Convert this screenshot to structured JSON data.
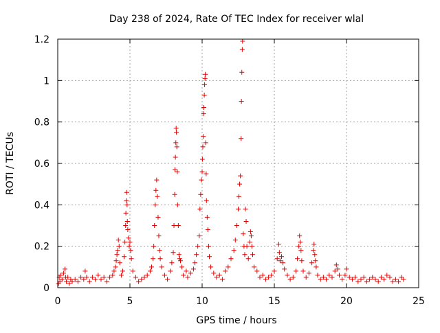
{
  "chart_data": {
    "type": "scatter",
    "title": "Day 238 of 2024, Rate Of TEC Index for receiver wlal",
    "xlabel": "GPS time / hours",
    "ylabel": "ROTI / TECUs",
    "xlim": [
      0,
      25
    ],
    "ylim": [
      0,
      1.2
    ],
    "xticks": [
      0,
      5,
      10,
      15,
      20,
      25
    ],
    "xtick_labels": [
      "0",
      "5",
      "10",
      "15",
      "20",
      "25"
    ],
    "yticks": [
      0,
      0.2,
      0.4,
      0.6,
      0.8,
      1.0,
      1.2
    ],
    "ytick_labels": [
      "0",
      "0.2",
      "0.4",
      "0.6",
      "0.8",
      "1",
      "1.2"
    ],
    "grid": true,
    "marker": "+",
    "series": [
      {
        "color": "#e00000",
        "points": [
          [
            0.05,
            0.02
          ],
          [
            0.1,
            0.05
          ],
          [
            0.15,
            0.03
          ],
          [
            0.2,
            0.06
          ],
          [
            0.3,
            0.04
          ],
          [
            0.4,
            0.07
          ],
          [
            0.5,
            0.09
          ],
          [
            0.55,
            0.05
          ],
          [
            0.6,
            0.03
          ],
          [
            0.7,
            0.05
          ],
          [
            0.8,
            0.02
          ],
          [
            0.9,
            0.04
          ],
          [
            1.0,
            0.03
          ],
          [
            1.2,
            0.04
          ],
          [
            1.4,
            0.03
          ],
          [
            1.6,
            0.05
          ],
          [
            1.8,
            0.04
          ],
          [
            1.9,
            0.08
          ],
          [
            2.0,
            0.05
          ],
          [
            2.2,
            0.03
          ],
          [
            2.4,
            0.05
          ],
          [
            2.6,
            0.04
          ],
          [
            2.8,
            0.06
          ],
          [
            3.0,
            0.04
          ],
          [
            3.2,
            0.05
          ],
          [
            3.4,
            0.03
          ],
          [
            3.6,
            0.05
          ],
          [
            3.8,
            0.06
          ],
          [
            3.9,
            0.08
          ],
          [
            4.0,
            0.1
          ],
          [
            4.05,
            0.13
          ],
          [
            4.1,
            0.16
          ],
          [
            4.15,
            0.18
          ],
          [
            4.2,
            0.23
          ],
          [
            4.25,
            0.2
          ],
          [
            4.3,
            0.12
          ],
          [
            4.4,
            0.06
          ],
          [
            4.5,
            0.08
          ],
          [
            4.6,
            0.15
          ],
          [
            4.65,
            0.22
          ],
          [
            4.7,
            0.3
          ],
          [
            4.72,
            0.36
          ],
          [
            4.75,
            0.42
          ],
          [
            4.78,
            0.46
          ],
          [
            4.8,
            0.4
          ],
          [
            4.82,
            0.32
          ],
          [
            4.85,
            0.28
          ],
          [
            4.9,
            0.24
          ],
          [
            4.95,
            0.2
          ],
          [
            5.0,
            0.22
          ],
          [
            5.05,
            0.18
          ],
          [
            5.1,
            0.14
          ],
          [
            5.2,
            0.08
          ],
          [
            5.4,
            0.05
          ],
          [
            5.6,
            0.03
          ],
          [
            5.8,
            0.04
          ],
          [
            6.0,
            0.05
          ],
          [
            6.2,
            0.06
          ],
          [
            6.4,
            0.08
          ],
          [
            6.5,
            0.1
          ],
          [
            6.6,
            0.14
          ],
          [
            6.65,
            0.2
          ],
          [
            6.7,
            0.3
          ],
          [
            6.75,
            0.4
          ],
          [
            6.8,
            0.47
          ],
          [
            6.85,
            0.52
          ],
          [
            6.9,
            0.44
          ],
          [
            6.95,
            0.34
          ],
          [
            7.0,
            0.25
          ],
          [
            7.05,
            0.18
          ],
          [
            7.1,
            0.14
          ],
          [
            7.2,
            0.1
          ],
          [
            7.4,
            0.06
          ],
          [
            7.6,
            0.04
          ],
          [
            7.8,
            0.08
          ],
          [
            7.9,
            0.12
          ],
          [
            8.0,
            0.17
          ],
          [
            8.05,
            0.3
          ],
          [
            8.1,
            0.45
          ],
          [
            8.12,
            0.57
          ],
          [
            8.15,
            0.63
          ],
          [
            8.18,
            0.7
          ],
          [
            8.2,
            0.77
          ],
          [
            8.22,
            0.75
          ],
          [
            8.25,
            0.68
          ],
          [
            8.28,
            0.56
          ],
          [
            8.3,
            0.4
          ],
          [
            8.35,
            0.3
          ],
          [
            8.4,
            0.16
          ],
          [
            8.45,
            0.14
          ],
          [
            8.5,
            0.13
          ],
          [
            8.6,
            0.1
          ],
          [
            8.7,
            0.06
          ],
          [
            8.9,
            0.08
          ],
          [
            9.0,
            0.05
          ],
          [
            9.2,
            0.07
          ],
          [
            9.4,
            0.09
          ],
          [
            9.5,
            0.12
          ],
          [
            9.6,
            0.16
          ],
          [
            9.7,
            0.2
          ],
          [
            9.8,
            0.25
          ],
          [
            9.85,
            0.38
          ],
          [
            9.9,
            0.45
          ],
          [
            9.95,
            0.52
          ],
          [
            10.0,
            0.56
          ],
          [
            10.02,
            0.62
          ],
          [
            10.05,
            0.68
          ],
          [
            10.08,
            0.73
          ],
          [
            10.1,
            0.84
          ],
          [
            10.12,
            0.87
          ],
          [
            10.15,
            0.93
          ],
          [
            10.17,
            0.98
          ],
          [
            10.2,
            1.01
          ],
          [
            10.22,
            1.03
          ],
          [
            10.25,
            0.7
          ],
          [
            10.28,
            0.55
          ],
          [
            10.3,
            0.42
          ],
          [
            10.35,
            0.34
          ],
          [
            10.4,
            0.28
          ],
          [
            10.45,
            0.2
          ],
          [
            10.5,
            0.15
          ],
          [
            10.6,
            0.1
          ],
          [
            10.8,
            0.07
          ],
          [
            11.0,
            0.05
          ],
          [
            11.2,
            0.06
          ],
          [
            11.4,
            0.04
          ],
          [
            11.6,
            0.08
          ],
          [
            11.8,
            0.1
          ],
          [
            12.0,
            0.14
          ],
          [
            12.2,
            0.18
          ],
          [
            12.3,
            0.23
          ],
          [
            12.4,
            0.3
          ],
          [
            12.5,
            0.38
          ],
          [
            12.55,
            0.44
          ],
          [
            12.6,
            0.5
          ],
          [
            12.65,
            0.54
          ],
          [
            12.7,
            0.72
          ],
          [
            12.72,
            0.9
          ],
          [
            12.75,
            1.04
          ],
          [
            12.78,
            1.15
          ],
          [
            12.8,
            1.19
          ],
          [
            12.85,
            0.26
          ],
          [
            12.9,
            0.2
          ],
          [
            12.95,
            0.16
          ],
          [
            13.0,
            0.38
          ],
          [
            13.05,
            0.32
          ],
          [
            13.1,
            0.2
          ],
          [
            13.2,
            0.14
          ],
          [
            13.3,
            0.22
          ],
          [
            13.35,
            0.27
          ],
          [
            13.4,
            0.25
          ],
          [
            13.45,
            0.2
          ],
          [
            13.5,
            0.16
          ],
          [
            13.6,
            0.1
          ],
          [
            13.8,
            0.08
          ],
          [
            14.0,
            0.05
          ],
          [
            14.2,
            0.06
          ],
          [
            14.4,
            0.04
          ],
          [
            14.6,
            0.05
          ],
          [
            14.8,
            0.06
          ],
          [
            15.0,
            0.08
          ],
          [
            15.2,
            0.14
          ],
          [
            15.3,
            0.21
          ],
          [
            15.35,
            0.17
          ],
          [
            15.4,
            0.13
          ],
          [
            15.5,
            0.15
          ],
          [
            15.6,
            0.12
          ],
          [
            15.7,
            0.09
          ],
          [
            15.9,
            0.06
          ],
          [
            16.1,
            0.04
          ],
          [
            16.3,
            0.05
          ],
          [
            16.5,
            0.08
          ],
          [
            16.6,
            0.14
          ],
          [
            16.7,
            0.2
          ],
          [
            16.75,
            0.25
          ],
          [
            16.8,
            0.22
          ],
          [
            16.85,
            0.18
          ],
          [
            16.9,
            0.13
          ],
          [
            17.0,
            0.08
          ],
          [
            17.2,
            0.05
          ],
          [
            17.4,
            0.07
          ],
          [
            17.6,
            0.12
          ],
          [
            17.7,
            0.18
          ],
          [
            17.75,
            0.21
          ],
          [
            17.8,
            0.16
          ],
          [
            17.85,
            0.13
          ],
          [
            17.9,
            0.1
          ],
          [
            18.0,
            0.06
          ],
          [
            18.2,
            0.04
          ],
          [
            18.4,
            0.05
          ],
          [
            18.6,
            0.04
          ],
          [
            18.8,
            0.06
          ],
          [
            19.0,
            0.05
          ],
          [
            19.2,
            0.08
          ],
          [
            19.3,
            0.11
          ],
          [
            19.4,
            0.09
          ],
          [
            19.5,
            0.06
          ],
          [
            19.7,
            0.04
          ],
          [
            19.9,
            0.06
          ],
          [
            20.0,
            0.09
          ],
          [
            20.2,
            0.05
          ],
          [
            20.4,
            0.04
          ],
          [
            20.6,
            0.05
          ],
          [
            20.8,
            0.03
          ],
          [
            21.0,
            0.04
          ],
          [
            21.2,
            0.05
          ],
          [
            21.4,
            0.03
          ],
          [
            21.6,
            0.04
          ],
          [
            21.8,
            0.05
          ],
          [
            22.0,
            0.04
          ],
          [
            22.2,
            0.03
          ],
          [
            22.4,
            0.05
          ],
          [
            22.6,
            0.04
          ],
          [
            22.8,
            0.06
          ],
          [
            23.0,
            0.05
          ],
          [
            23.2,
            0.03
          ],
          [
            23.4,
            0.04
          ],
          [
            23.6,
            0.03
          ],
          [
            23.8,
            0.05
          ],
          [
            23.95,
            0.04
          ]
        ]
      }
    ]
  }
}
